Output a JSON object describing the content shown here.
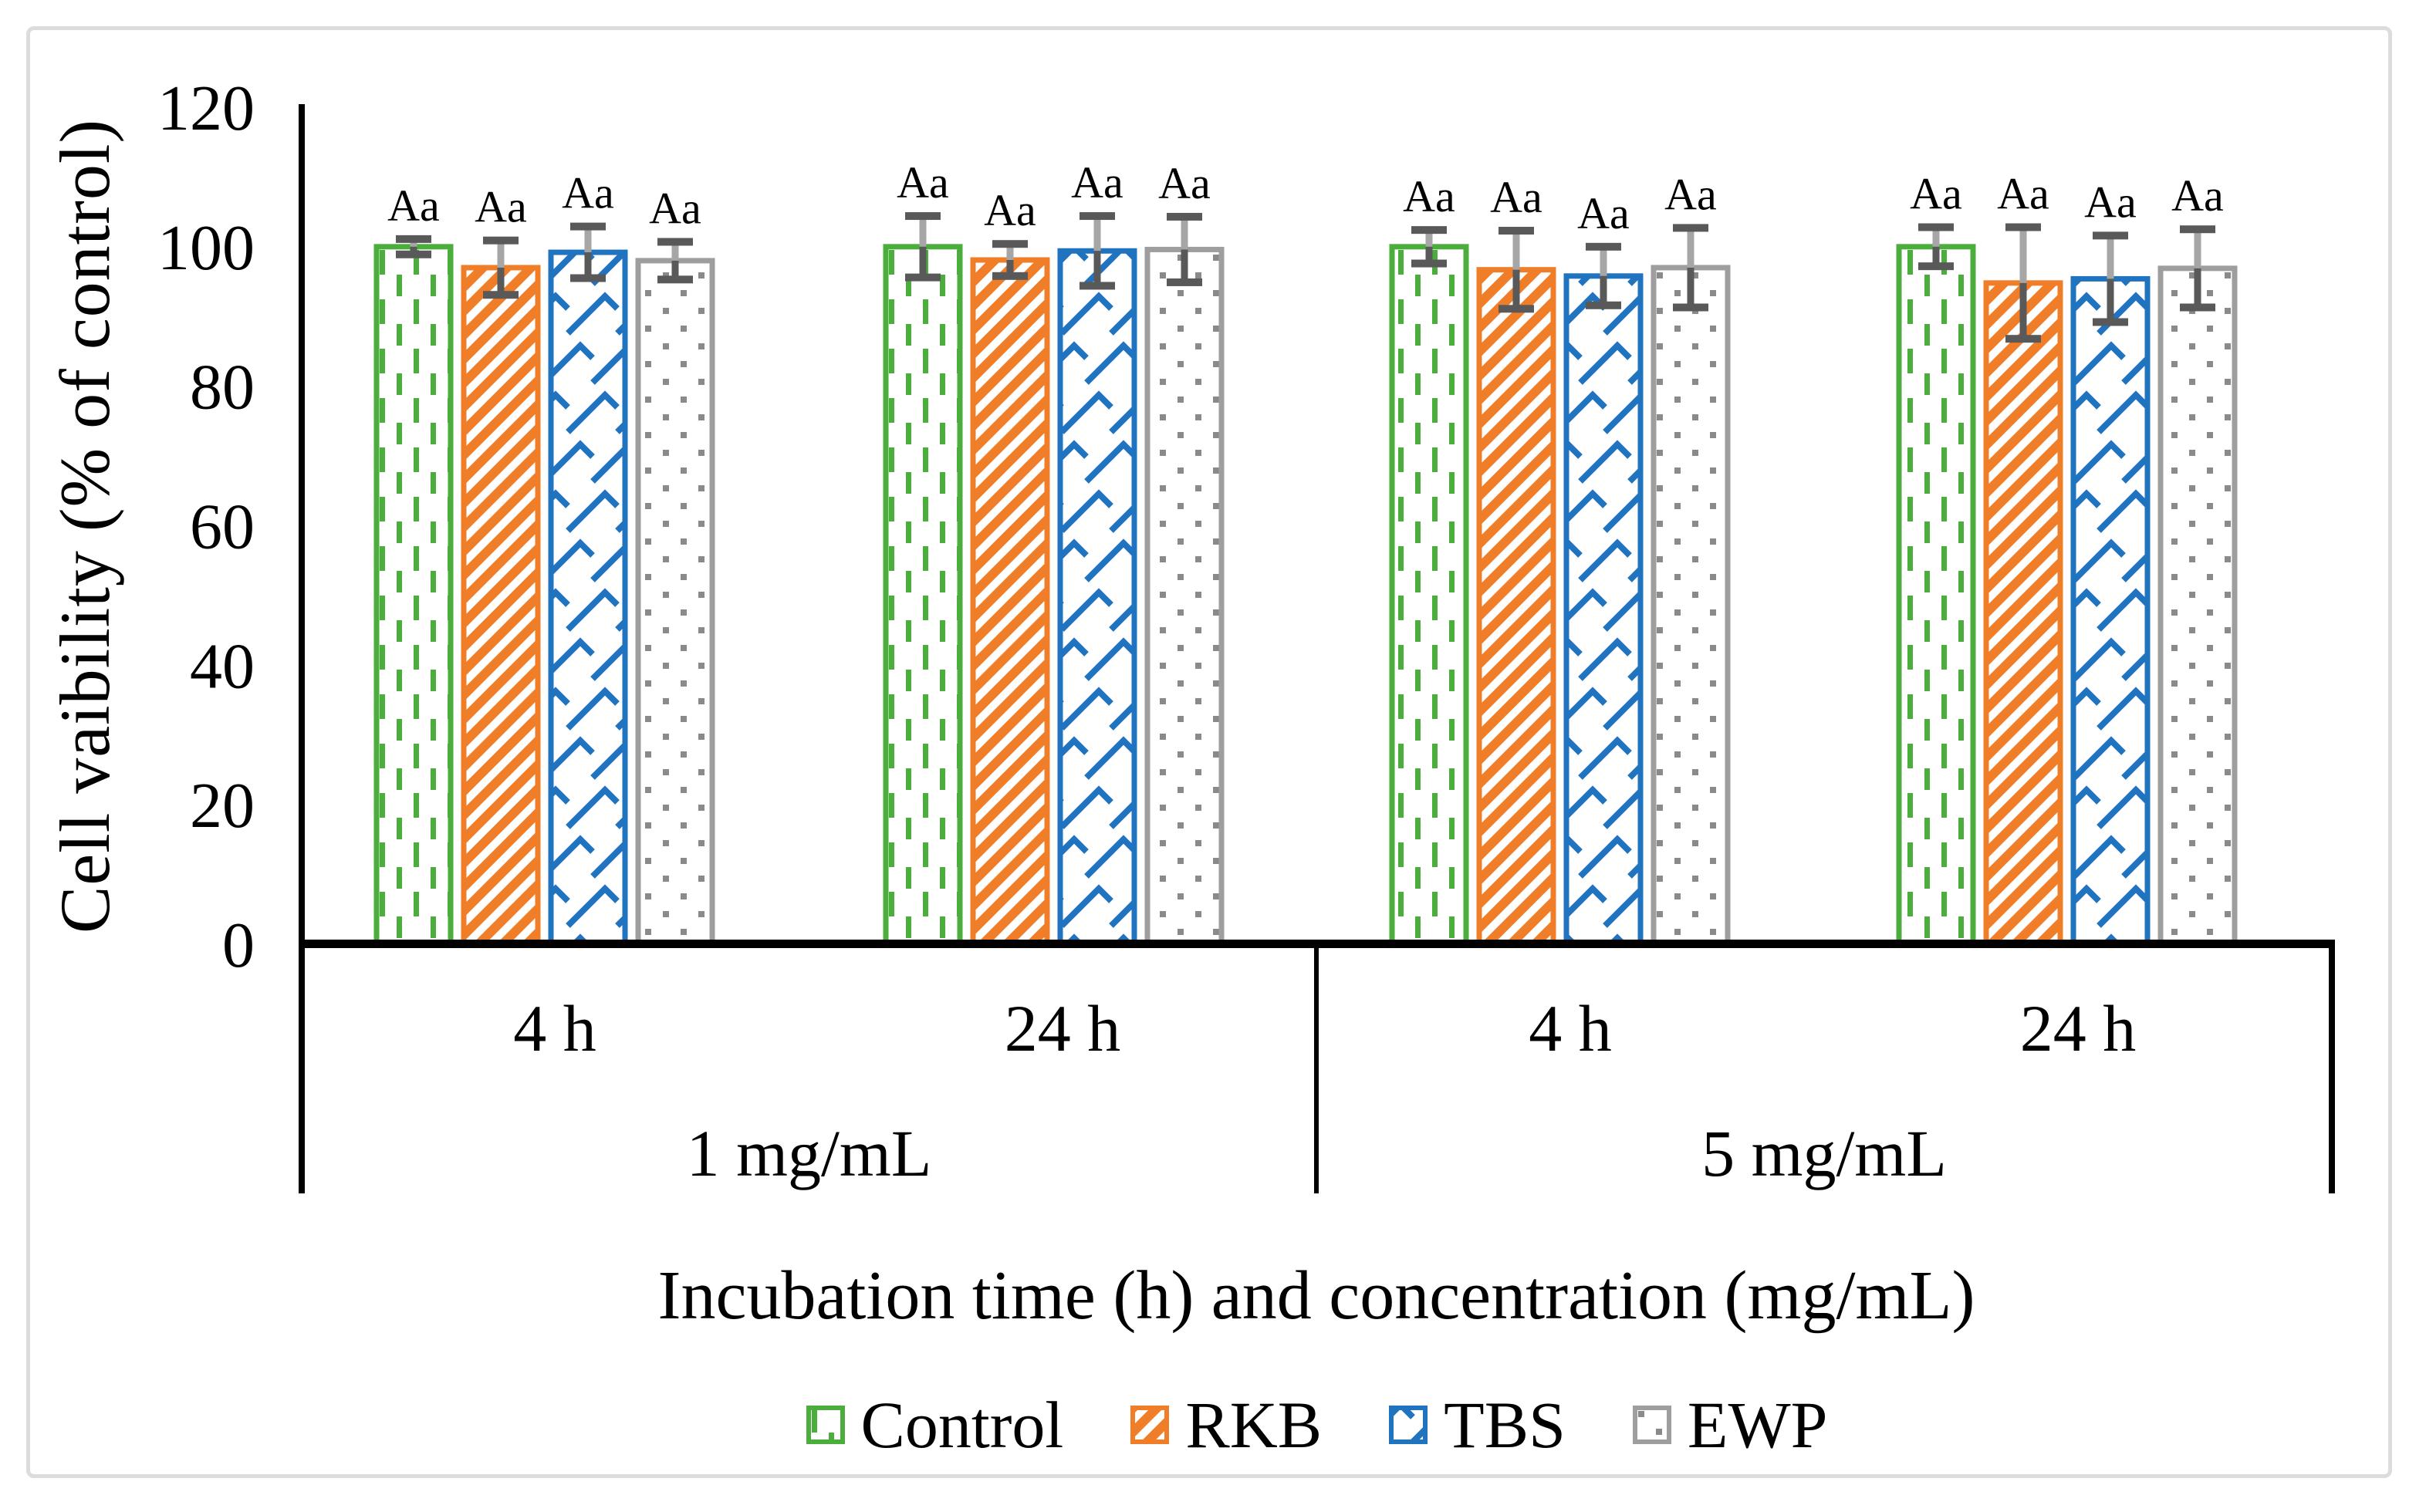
{
  "chart_data": {
    "type": "bar",
    "title": "",
    "ylabel": "Cell vaibility (% of control)",
    "xlabel": "Incubation time (h) and concentration (mg/mL)",
    "ylim": [
      0,
      120
    ],
    "yticks": [
      0,
      20,
      40,
      60,
      80,
      100,
      120
    ],
    "grid": false,
    "legend_position": "bottom",
    "group_labels": {
      "time": [
        "4 h",
        "24 h",
        "4 h",
        "24 h"
      ],
      "concentration": [
        "1 mg/mL",
        "5 mg/mL"
      ]
    },
    "categories": [
      "1 mg/mL - 4 h",
      "1 mg/mL - 24 h",
      "5 mg/mL - 4 h",
      "5 mg/mL - 24 h"
    ],
    "series": [
      {
        "name": "Control",
        "color": "#4BAE3C",
        "pattern": "dashed-vertical",
        "values": [
          100,
          100,
          100,
          100
        ],
        "errors": [
          1.1,
          4.4,
          2.4,
          2.8
        ],
        "labels": [
          "Aa",
          "Aa",
          "Aa",
          "Aa"
        ]
      },
      {
        "name": "RKB",
        "color": "#F07D28",
        "pattern": "diagonal-stripes",
        "values": [
          97.0,
          98.1,
          96.7,
          94.8
        ],
        "errors": [
          3.9,
          2.3,
          5.6,
          8.0
        ],
        "labels": [
          "Aa",
          "Aa",
          "Aa",
          "Aa"
        ]
      },
      {
        "name": "TBS",
        "color": "#2073BF",
        "pattern": "shingle",
        "values": [
          99.2,
          99.4,
          95.8,
          95.4
        ],
        "errors": [
          3.7,
          5.0,
          4.2,
          6.2
        ],
        "labels": [
          "Aa",
          "Aa",
          "Aa",
          "Aa"
        ]
      },
      {
        "name": "EWP",
        "color": "#9E9E9E",
        "pattern_color": "#8A8A8A",
        "pattern": "dots",
        "values": [
          98.0,
          99.6,
          97.0,
          96.9
        ],
        "errors": [
          2.7,
          4.7,
          5.7,
          5.6
        ],
        "labels": [
          "Aa",
          "Aa",
          "Aa",
          "Aa"
        ]
      }
    ],
    "error_bar": {
      "cap_color": "#595959",
      "stem_above_color": "#A6A6A6",
      "stem_below_color": "#595959"
    }
  }
}
